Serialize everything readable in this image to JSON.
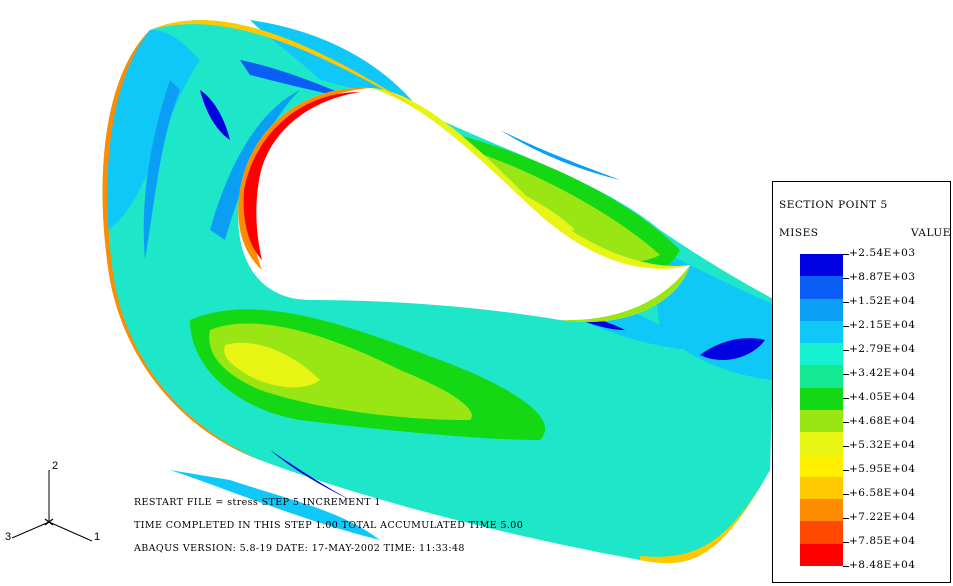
{
  "legend": {
    "title": "SECTION POINT 5",
    "variable": "MISES",
    "value_header": "VALUE",
    "values": [
      "+2.54E+03",
      "+8.87E+03",
      "+1.52E+04",
      "+2.15E+04",
      "+2.79E+04",
      "+3.42E+04",
      "+4.05E+04",
      "+4.68E+04",
      "+5.32E+04",
      "+5.95E+04",
      "+6.58E+04",
      "+7.22E+04",
      "+7.85E+04",
      "+8.48E+04"
    ],
    "colors": [
      "#0000e0",
      "#0a5ef5",
      "#0a9ff5",
      "#10c8f8",
      "#14f0d0",
      "#14e890",
      "#14d814",
      "#9ae614",
      "#e8f414",
      "#fff000",
      "#ffc800",
      "#ff8c00",
      "#ff4800",
      "#ff0000"
    ]
  },
  "info": {
    "line1": "RESTART FILE = stress   STEP 5  INCREMENT 1",
    "line2": "TIME COMPLETED IN THIS STEP     1.00     TOTAL ACCUMULATED TIME     5.00",
    "line3": "ABAQUS VERSION: 5.8-19   DATE: 17-MAY-2002  TIME: 11:33:48"
  },
  "triad": {
    "axis_x": "1",
    "axis_y": "2",
    "axis_z": "3"
  }
}
